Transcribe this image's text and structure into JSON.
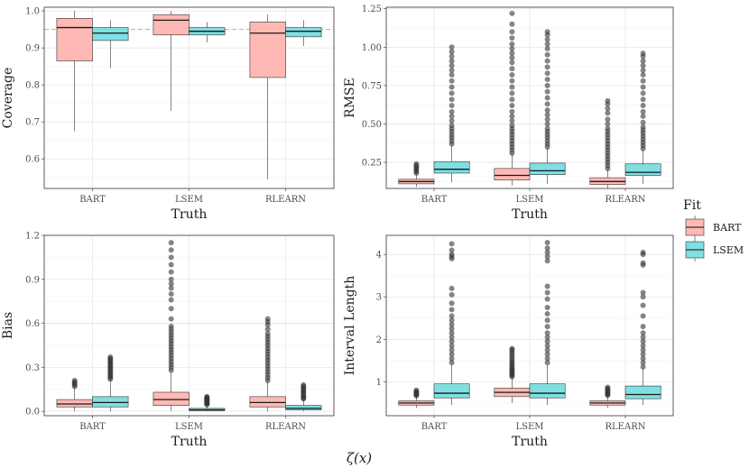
{
  "figure": {
    "bottom_label": "ζ(x)",
    "legend": {
      "title": "Fit",
      "items": [
        {
          "label": "BART",
          "color": "#F8766D",
          "fill": "#FBB4AE"
        },
        {
          "label": "LSEM",
          "color": "#00BFC4",
          "fill": "#7FDFE1"
        }
      ]
    },
    "colors": {
      "BART_fill": "#FFB9B4",
      "LSEM_fill": "#7FDFE1",
      "outlier": "#333333",
      "ref_line": "#b3b3b3"
    }
  },
  "chart_data": [
    {
      "type": "boxplot",
      "panel": "top-left",
      "xlabel": "Truth",
      "ylabel": "Coverage",
      "categories": [
        "BART",
        "LSEM",
        "RLEARN"
      ],
      "ylim": [
        0.52,
        1.01
      ],
      "yticks": [
        0.6,
        0.7,
        0.8,
        0.9,
        1.0
      ],
      "ytick_labels": [
        "0.6",
        "0.7",
        "0.8",
        "0.9",
        "1.0"
      ],
      "reference_line": 0.95,
      "grid": true,
      "series": [
        {
          "name": "BART",
          "boxes": [
            {
              "q1": 0.865,
              "median": 0.955,
              "q3": 0.98,
              "whisker_low": 0.675,
              "whisker_high": 1.0,
              "outliers": []
            },
            {
              "q1": 0.935,
              "median": 0.975,
              "q3": 0.99,
              "whisker_low": 0.73,
              "whisker_high": 1.0,
              "outliers": []
            },
            {
              "q1": 0.82,
              "median": 0.94,
              "q3": 0.97,
              "whisker_low": 0.545,
              "whisker_high": 0.99,
              "outliers": []
            }
          ]
        },
        {
          "name": "LSEM",
          "boxes": [
            {
              "q1": 0.92,
              "median": 0.94,
              "q3": 0.955,
              "whisker_low": 0.845,
              "whisker_high": 0.975,
              "outliers": []
            },
            {
              "q1": 0.935,
              "median": 0.945,
              "q3": 0.955,
              "whisker_low": 0.915,
              "whisker_high": 0.97,
              "outliers": []
            },
            {
              "q1": 0.93,
              "median": 0.945,
              "q3": 0.955,
              "whisker_low": 0.905,
              "whisker_high": 0.975,
              "outliers": []
            }
          ]
        }
      ]
    },
    {
      "type": "boxplot",
      "panel": "top-right",
      "xlabel": "Truth",
      "ylabel": "RMSE",
      "categories": [
        "BART",
        "LSEM",
        "RLEARN"
      ],
      "ylim": [
        0.08,
        1.26
      ],
      "yticks": [
        0.25,
        0.5,
        0.75,
        1.0,
        1.25
      ],
      "ytick_labels": [
        "0.25",
        "0.50",
        "0.75",
        "1.00",
        "1.25"
      ],
      "grid": true,
      "series": [
        {
          "name": "BART",
          "boxes": [
            {
              "q1": 0.11,
              "median": 0.125,
              "q3": 0.14,
              "whisker_low": 0.09,
              "whisker_high": 0.175,
              "outliers": [
                0.18,
                0.19,
                0.2,
                0.21,
                0.22,
                0.23,
                0.24
              ]
            },
            {
              "q1": 0.135,
              "median": 0.165,
              "q3": 0.21,
              "whisker_low": 0.1,
              "whisker_high": 0.3,
              "outliers": [
                0.31,
                0.33,
                0.35,
                0.37,
                0.39,
                0.41,
                0.43,
                0.45,
                0.47,
                0.49,
                0.52,
                0.55,
                0.58,
                0.62,
                0.66,
                0.7,
                0.74,
                0.78,
                0.82,
                0.86,
                0.9,
                0.93,
                0.96,
                0.99,
                1.02,
                1.06,
                1.1,
                1.15,
                1.22
              ]
            },
            {
              "q1": 0.105,
              "median": 0.125,
              "q3": 0.15,
              "whisker_low": 0.08,
              "whisker_high": 0.2,
              "outliers": [
                0.21,
                0.23,
                0.25,
                0.27,
                0.29,
                0.31,
                0.33,
                0.35,
                0.37,
                0.39,
                0.41,
                0.43,
                0.45,
                0.47,
                0.5,
                0.53,
                0.57,
                0.6,
                0.63,
                0.65
              ]
            }
          ]
        },
        {
          "name": "LSEM",
          "boxes": [
            {
              "q1": 0.18,
              "median": 0.205,
              "q3": 0.255,
              "whisker_low": 0.12,
              "whisker_high": 0.36,
              "outliers": [
                0.37,
                0.39,
                0.41,
                0.43,
                0.45,
                0.47,
                0.49,
                0.52,
                0.55,
                0.58,
                0.62,
                0.66,
                0.7,
                0.74,
                0.78,
                0.82,
                0.85,
                0.88,
                0.91,
                0.94,
                0.97,
                1.0
              ]
            },
            {
              "q1": 0.17,
              "median": 0.195,
              "q3": 0.245,
              "whisker_low": 0.11,
              "whisker_high": 0.34,
              "outliers": [
                0.35,
                0.37,
                0.39,
                0.41,
                0.43,
                0.45,
                0.47,
                0.5,
                0.53,
                0.56,
                0.59,
                0.63,
                0.67,
                0.71,
                0.75,
                0.79,
                0.83,
                0.87,
                0.91,
                0.95,
                0.99,
                1.02,
                1.05,
                1.08,
                1.1
              ]
            },
            {
              "q1": 0.165,
              "median": 0.185,
              "q3": 0.24,
              "whisker_low": 0.11,
              "whisker_high": 0.33,
              "outliers": [
                0.34,
                0.36,
                0.38,
                0.4,
                0.42,
                0.44,
                0.46,
                0.48,
                0.51,
                0.55,
                0.58,
                0.62,
                0.66,
                0.7,
                0.74,
                0.78,
                0.82,
                0.85,
                0.88,
                0.91,
                0.94,
                0.96
              ]
            }
          ]
        }
      ]
    },
    {
      "type": "boxplot",
      "panel": "bottom-left",
      "xlabel": "Truth",
      "ylabel": "Bias",
      "categories": [
        "BART",
        "LSEM",
        "RLEARN"
      ],
      "ylim": [
        -0.03,
        1.2
      ],
      "yticks": [
        0.0,
        0.3,
        0.6,
        0.9,
        1.2
      ],
      "ytick_labels": [
        "0.0",
        "0.3",
        "0.6",
        "0.9",
        "1.2"
      ],
      "grid": true,
      "series": [
        {
          "name": "BART",
          "boxes": [
            {
              "q1": 0.03,
              "median": 0.05,
              "q3": 0.08,
              "whisker_low": 0.0,
              "whisker_high": 0.16,
              "outliers": [
                0.17,
                0.18,
                0.19,
                0.2,
                0.21
              ]
            },
            {
              "q1": 0.04,
              "median": 0.08,
              "q3": 0.13,
              "whisker_low": 0.0,
              "whisker_high": 0.27,
              "outliers": [
                0.28,
                0.3,
                0.32,
                0.34,
                0.36,
                0.38,
                0.4,
                0.42,
                0.44,
                0.46,
                0.48,
                0.5,
                0.52,
                0.54,
                0.56,
                0.58,
                0.63,
                0.7,
                0.76,
                0.8,
                0.84,
                0.87,
                0.9,
                0.95,
                1.0,
                1.05,
                1.1,
                1.15
              ]
            },
            {
              "q1": 0.03,
              "median": 0.06,
              "q3": 0.1,
              "whisker_low": 0.0,
              "whisker_high": 0.2,
              "outliers": [
                0.21,
                0.23,
                0.25,
                0.27,
                0.29,
                0.31,
                0.33,
                0.35,
                0.37,
                0.39,
                0.41,
                0.43,
                0.45,
                0.47,
                0.49,
                0.51,
                0.53,
                0.56,
                0.59,
                0.61,
                0.63
              ]
            }
          ]
        },
        {
          "name": "LSEM",
          "boxes": [
            {
              "q1": 0.03,
              "median": 0.06,
              "q3": 0.1,
              "whisker_low": 0.0,
              "whisker_high": 0.21,
              "outliers": [
                0.22,
                0.23,
                0.24,
                0.25,
                0.26,
                0.27,
                0.28,
                0.29,
                0.3,
                0.31,
                0.32,
                0.33,
                0.34,
                0.35,
                0.36,
                0.37
              ]
            },
            {
              "q1": 0.005,
              "median": 0.01,
              "q3": 0.02,
              "whisker_low": 0.0,
              "whisker_high": 0.04,
              "outliers": [
                0.045,
                0.05,
                0.055,
                0.06,
                0.065,
                0.07,
                0.075,
                0.08,
                0.085,
                0.09,
                0.095,
                0.1
              ]
            },
            {
              "q1": 0.01,
              "median": 0.02,
              "q3": 0.04,
              "whisker_low": 0.0,
              "whisker_high": 0.08,
              "outliers": [
                0.085,
                0.09,
                0.1,
                0.11,
                0.12,
                0.13,
                0.14,
                0.15,
                0.16,
                0.17,
                0.18
              ]
            }
          ]
        }
      ]
    },
    {
      "type": "boxplot",
      "panel": "bottom-right",
      "xlabel": "Truth",
      "ylabel": "Interval Length",
      "categories": [
        "BART",
        "LSEM",
        "RLEARN"
      ],
      "ylim": [
        0.2,
        4.45
      ],
      "yticks": [
        1,
        2,
        3,
        4
      ],
      "ytick_labels": [
        "1",
        "2",
        "3",
        "4"
      ],
      "grid": true,
      "series": [
        {
          "name": "BART",
          "boxes": [
            {
              "q1": 0.45,
              "median": 0.5,
              "q3": 0.55,
              "whisker_low": 0.38,
              "whisker_high": 0.65,
              "outliers": [
                0.67,
                0.69,
                0.71,
                0.73,
                0.75,
                0.77,
                0.8
              ]
            },
            {
              "q1": 0.65,
              "median": 0.75,
              "q3": 0.85,
              "whisker_low": 0.5,
              "whisker_high": 1.1,
              "outliers": [
                1.12,
                1.15,
                1.18,
                1.21,
                1.24,
                1.27,
                1.3,
                1.34,
                1.38,
                1.42,
                1.46,
                1.5,
                1.55,
                1.6,
                1.65,
                1.7,
                1.75,
                1.78
              ]
            },
            {
              "q1": 0.45,
              "median": 0.5,
              "q3": 0.55,
              "whisker_low": 0.38,
              "whisker_high": 0.66,
              "outliers": [
                0.68,
                0.7,
                0.72,
                0.75,
                0.78,
                0.81,
                0.84,
                0.87
              ]
            }
          ]
        },
        {
          "name": "LSEM",
          "boxes": [
            {
              "q1": 0.62,
              "median": 0.73,
              "q3": 0.95,
              "whisker_low": 0.45,
              "whisker_high": 1.4,
              "outliers": [
                1.45,
                1.55,
                1.65,
                1.75,
                1.85,
                1.95,
                2.05,
                2.15,
                2.25,
                2.35,
                2.45,
                2.55,
                2.7,
                2.85,
                3.05,
                3.2,
                3.9,
                3.95,
                4.0,
                4.1,
                4.25
              ]
            },
            {
              "q1": 0.62,
              "median": 0.73,
              "q3": 0.95,
              "whisker_low": 0.45,
              "whisker_high": 1.4,
              "outliers": [
                1.45,
                1.55,
                1.65,
                1.75,
                1.85,
                1.95,
                2.05,
                2.15,
                2.3,
                2.45,
                2.6,
                2.75,
                2.95,
                3.1,
                3.25,
                3.85,
                3.95,
                4.05,
                4.15,
                4.28
              ]
            },
            {
              "q1": 0.6,
              "median": 0.7,
              "q3": 0.9,
              "whisker_low": 0.45,
              "whisker_high": 1.3,
              "outliers": [
                1.35,
                1.45,
                1.55,
                1.65,
                1.75,
                1.85,
                1.95,
                2.05,
                2.15,
                2.3,
                2.55,
                2.8,
                3.0,
                3.1,
                3.75,
                3.8,
                4.0,
                4.05
              ]
            }
          ]
        }
      ]
    }
  ]
}
